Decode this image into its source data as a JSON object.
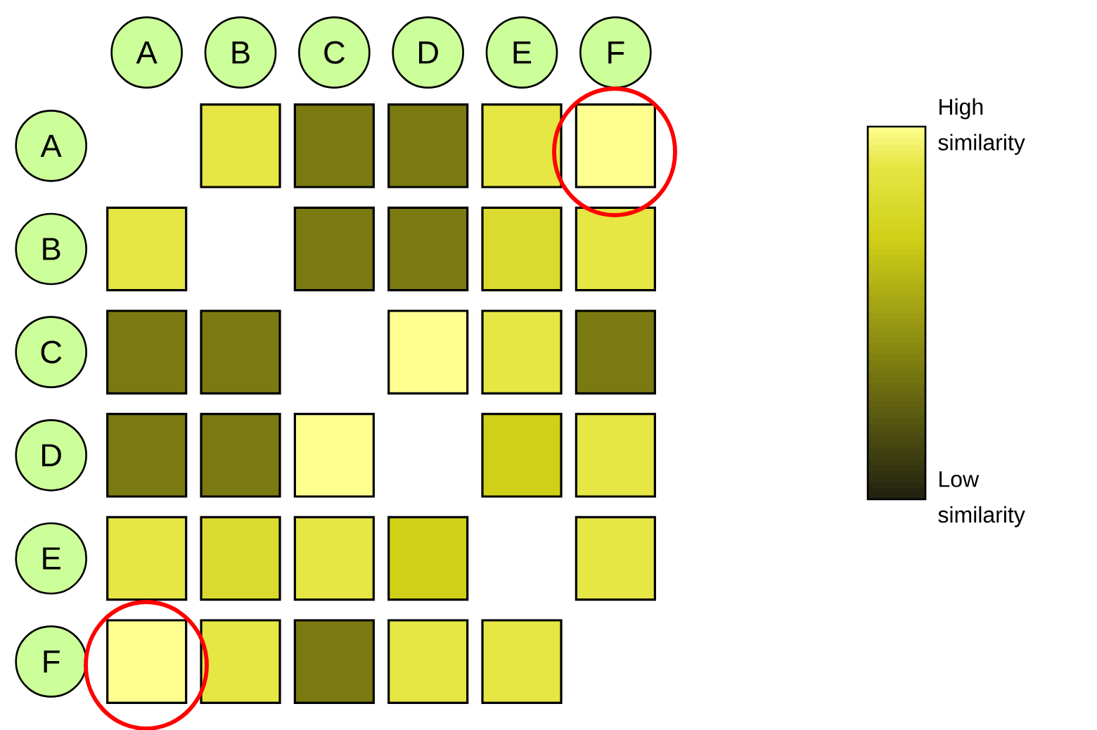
{
  "chart_data": {
    "type": "heatmap",
    "categories": [
      "A",
      "B",
      "C",
      "D",
      "E",
      "F"
    ],
    "y_categories": [
      "A",
      "B",
      "C",
      "D",
      "E",
      "F"
    ],
    "cells": [
      [
        null,
        0.9,
        0.35,
        0.35,
        0.9,
        1
      ],
      [
        0.9,
        null,
        0.35,
        0.35,
        0.8,
        0.9
      ],
      [
        0.35,
        0.35,
        null,
        1,
        0.9,
        0.35
      ],
      [
        0.35,
        0.35,
        1,
        null,
        0.7,
        0.9
      ],
      [
        0.9,
        0.8,
        0.9,
        0.7,
        null,
        0.9
      ],
      [
        1,
        0.9,
        0.35,
        0.9,
        0.9,
        null
      ]
    ],
    "clim": [
      0,
      1
    ],
    "cticks": [
      {
        "value": 0,
        "label": "Low similarity"
      },
      {
        "value": 1,
        "label": "High similarity"
      }
    ]
  }
}
